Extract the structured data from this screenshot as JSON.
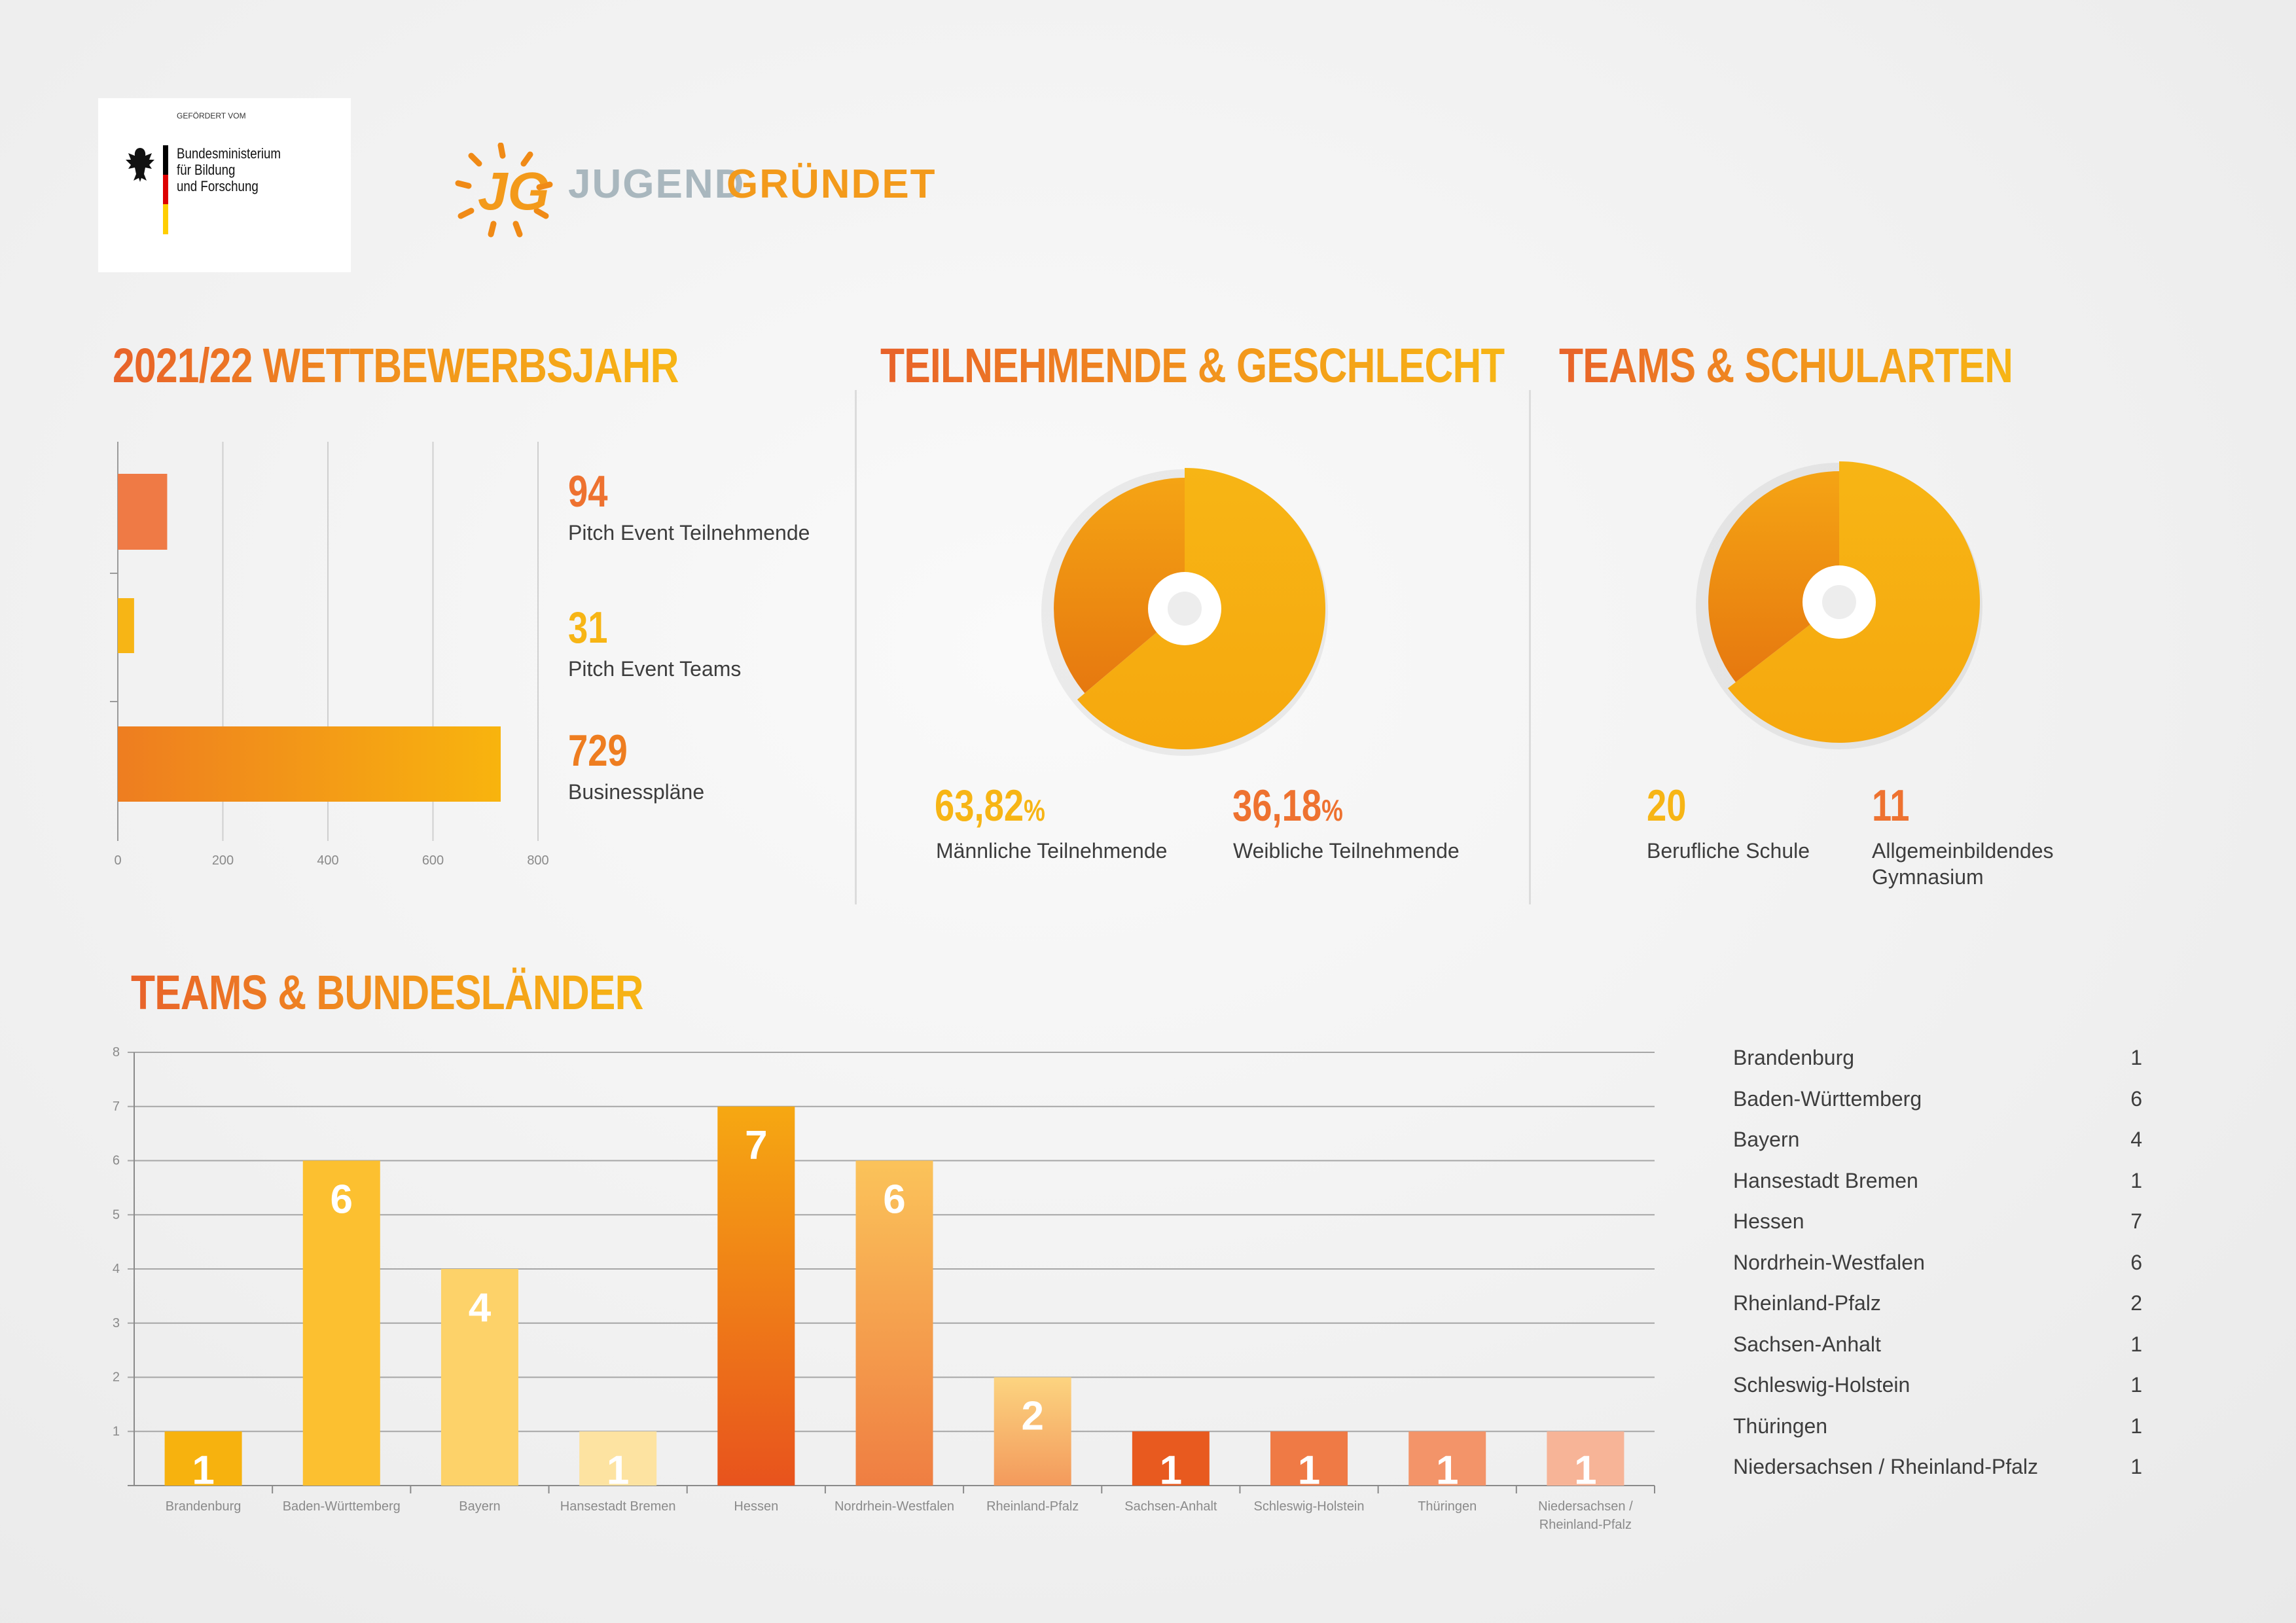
{
  "logos": {
    "bmbf_funded_by": "GEFÖRDERT VOM",
    "bmbf_line1": "Bundesministerium",
    "bmbf_line2": "für Bildung",
    "bmbf_line3": "und Forschung",
    "jg_mark": "JG",
    "jg_word1": "JUGEND",
    "jg_word2": "GRÜNDET"
  },
  "section1": {
    "title": "2021/22 WETTBEWERBSJAHR",
    "stats": [
      {
        "value": "94",
        "label": "Pitch Event Teilnehmende"
      },
      {
        "value": "31",
        "label": "Pitch Event Teams"
      },
      {
        "value": "729",
        "label": "Businesspläne"
      }
    ]
  },
  "section2": {
    "title": "TEILNEHMENDE & GESCHLECHT",
    "male_value": "63,82",
    "male_unit": "%",
    "male_label": "Männliche Teilnehmende",
    "female_value": "36,18",
    "female_unit": "%",
    "female_label": "Weibliche Teilnehmende"
  },
  "section3": {
    "title": "TEAMS & SCHULARTEN",
    "voc_value": "20",
    "voc_label": "Berufliche Schule",
    "gym_value": "11",
    "gym_label_1": "Allgemeinbildendes",
    "gym_label_2": "Gymnasium"
  },
  "section4": {
    "title": "TEAMS & BUNDESLÄNDER",
    "states": [
      {
        "name": "Brandenburg",
        "value": "1"
      },
      {
        "name": "Baden-Württemberg",
        "value": "6"
      },
      {
        "name": "Bayern",
        "value": "4"
      },
      {
        "name": "Hansestadt Bremen",
        "value": "1"
      },
      {
        "name": "Hessen",
        "value": "7"
      },
      {
        "name": "Nordrhein-Westfalen",
        "value": "6"
      },
      {
        "name": "Rheinland-Pfalz",
        "value": "2"
      },
      {
        "name": "Sachsen-Anhalt",
        "value": "1"
      },
      {
        "name": "Schleswig-Holstein",
        "value": "1"
      },
      {
        "name": "Thüringen",
        "value": "1"
      },
      {
        "name": "Niedersachsen / Rheinland-Pfalz",
        "value": "1"
      }
    ]
  },
  "chart_data": [
    {
      "type": "bar",
      "orientation": "horizontal",
      "categories": [
        "Pitch Event Teilnehmende",
        "Pitch Event Teams",
        "Businesspläne"
      ],
      "values": [
        94,
        31,
        729
      ],
      "xlim": [
        0,
        800
      ],
      "ticks": [
        0,
        200,
        400,
        600,
        800
      ],
      "colors": [
        "#ef7a45",
        "#f7b515",
        "#ee7d20"
      ],
      "grid": true
    },
    {
      "type": "pie",
      "title": "TEILNEHMENDE & GESCHLECHT",
      "slices": [
        {
          "label": "Männliche Teilnehmende",
          "value": 63.82,
          "color": "#f7b515"
        },
        {
          "label": "Weibliche Teilnehmende",
          "value": 36.18,
          "color": "#f08a16"
        }
      ]
    },
    {
      "type": "pie",
      "title": "TEAMS & SCHULARTEN",
      "slices": [
        {
          "label": "Berufliche Schule",
          "value": 20,
          "color": "#f7b515"
        },
        {
          "label": "Allgemeinbildendes Gymnasium",
          "value": 11,
          "color": "#f08a16"
        }
      ]
    },
    {
      "type": "bar",
      "title": "TEAMS & BUNDESLÄNDER",
      "categories": [
        "Brandenburg",
        "Baden-Württemberg",
        "Bayern",
        "Hansestadt Bremen",
        "Hessen",
        "Nordrhein-Westfalen",
        "Rheinland-Pfalz",
        "Sachsen-Anhalt",
        "Schleswig-Holstein",
        "Thüringen",
        "Niedersachsen / Rheinland-Pfalz"
      ],
      "category_lines": [
        [
          "Brandenburg"
        ],
        [
          "Baden-Württemberg"
        ],
        [
          "Bayern"
        ],
        [
          "Hansestadt Bremen"
        ],
        [
          "Hessen"
        ],
        [
          "Nordrhein-Westfalen"
        ],
        [
          "Rheinland-Pfalz"
        ],
        [
          "Sachsen-Anhalt"
        ],
        [
          "Schleswig-Holstein"
        ],
        [
          "Thüringen"
        ],
        [
          "Niedersachsen /",
          "Rheinland-Pfalz"
        ]
      ],
      "values": [
        1,
        6,
        4,
        1,
        7,
        6,
        2,
        1,
        1,
        1,
        1
      ],
      "ylim": [
        0,
        8
      ],
      "yticks": [
        1,
        2,
        3,
        4,
        5,
        6,
        7,
        8
      ],
      "colors": [
        [
          "#f7b20e",
          "#f7b20e"
        ],
        [
          "#fcc030",
          "#fcc030"
        ],
        [
          "#fdd269",
          "#fdd269"
        ],
        [
          "#fde3a1",
          "#fde3a1"
        ],
        [
          "#f6a812",
          "#e8531d"
        ],
        [
          "#fbc35a",
          "#ef7e42"
        ],
        [
          "#fcd480",
          "#f39a5c"
        ],
        [
          "#e85a1f",
          "#e85a1f"
        ],
        [
          "#ef7a45",
          "#ef7a45"
        ],
        [
          "#f39469",
          "#f39469"
        ],
        [
          "#f7b497",
          "#f7b497"
        ]
      ],
      "grid": true
    }
  ]
}
